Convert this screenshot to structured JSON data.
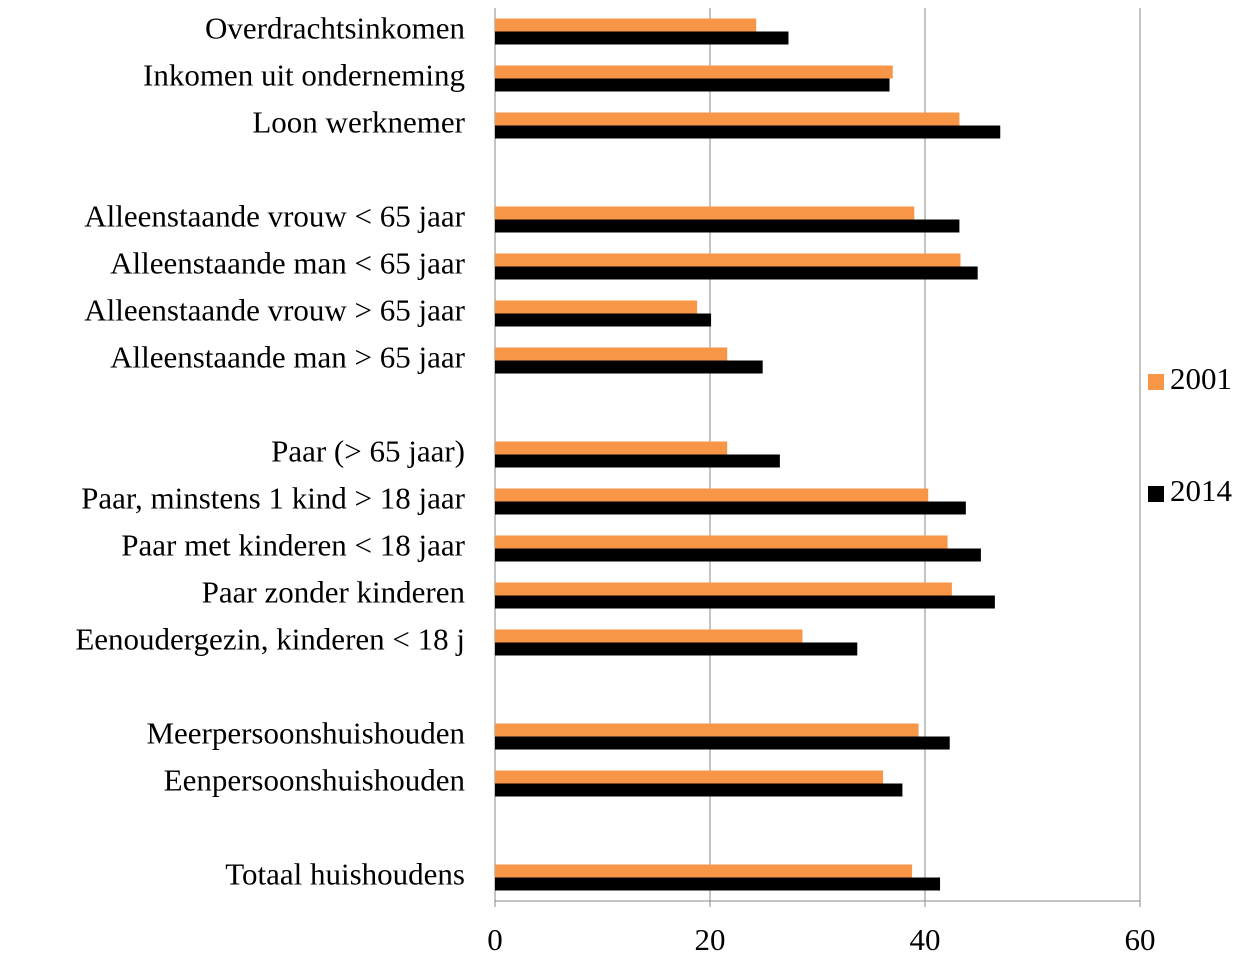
{
  "chart_data": {
    "type": "barh",
    "categories": [
      "Overdrachtsinkomen",
      "Inkomen uit onderneming",
      "Loon werknemer",
      null,
      "Alleenstaande vrouw < 65 jaar",
      "Alleenstaande man < 65 jaar",
      "Alleenstaande vrouw > 65 jaar",
      "Alleenstaande man > 65 jaar",
      null,
      "Paar (> 65 jaar)",
      "Paar, minstens 1 kind > 18 jaar",
      "Paar met kinderen < 18 jaar",
      "Paar zonder kinderen",
      "Eenoudergezin, kinderen < 18 j",
      null,
      "Meerpersoonshuishouden",
      "Eenpersoonshuishouden",
      null,
      "Totaal huishoudens"
    ],
    "series": [
      {
        "name": "2001",
        "color": "#f79646",
        "values": [
          24.3,
          37.0,
          43.2,
          null,
          39.0,
          43.3,
          18.8,
          21.6,
          null,
          21.6,
          40.3,
          42.1,
          42.5,
          28.6,
          null,
          39.4,
          36.1,
          null,
          38.8
        ]
      },
      {
        "name": "2014",
        "color": "#000000",
        "values": [
          27.3,
          36.7,
          47.0,
          null,
          43.2,
          44.9,
          20.1,
          24.9,
          null,
          26.5,
          43.8,
          45.2,
          46.5,
          33.7,
          null,
          42.3,
          37.9,
          null,
          41.4
        ]
      }
    ],
    "xlim": [
      0,
      60
    ],
    "xticks": [
      0,
      20,
      40,
      60
    ],
    "grid": true,
    "legend": "right"
  }
}
